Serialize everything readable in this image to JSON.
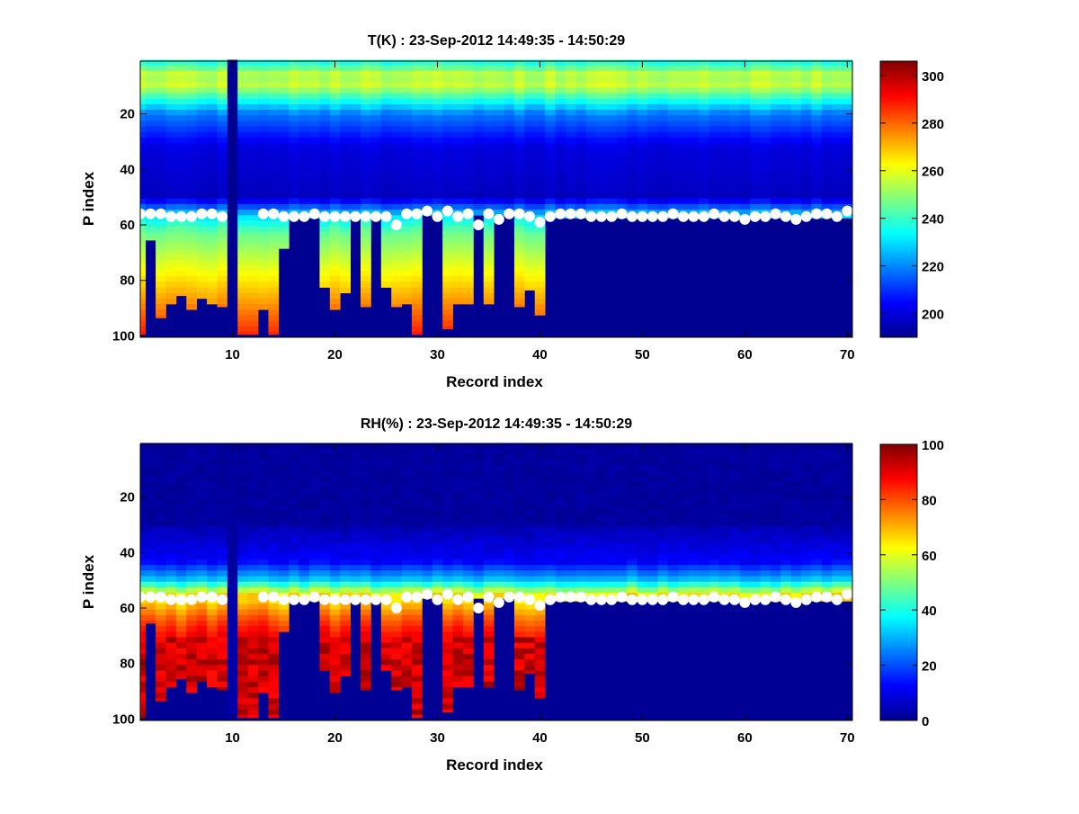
{
  "chart_data": [
    {
      "type": "heatmap",
      "title": "T(K) : 23-Sep-2012 14:49:35 - 14:50:29",
      "xlabel": "Record index",
      "ylabel": "P index",
      "xlim": [
        1,
        70.5
      ],
      "ylim": [
        1,
        100.5
      ],
      "xticks": [
        "10",
        "20",
        "30",
        "40",
        "50",
        "60",
        "70"
      ],
      "xtick_values": [
        10,
        20,
        30,
        40,
        50,
        60,
        70
      ],
      "yticks": [
        "20",
        "40",
        "60",
        "80",
        "100"
      ],
      "ytick_values": [
        20,
        40,
        60,
        80,
        100
      ],
      "colorbar": {
        "range": [
          190,
          306
        ],
        "ticks": [
          "200",
          "220",
          "240",
          "260",
          "280",
          "300"
        ],
        "tick_values": [
          200,
          220,
          240,
          260,
          280,
          300
        ]
      },
      "fill_value": 192,
      "profile_ends": [
        99,
        65,
        93,
        88,
        85,
        90,
        86,
        88,
        89,
        100,
        99,
        99,
        90,
        99,
        68,
        57,
        56,
        57,
        82,
        90,
        84,
        56,
        89,
        57,
        82,
        89,
        88,
        99,
        56,
        56,
        97,
        88,
        88,
        56,
        88,
        56,
        56,
        89,
        83,
        92
      ],
      "surface_p_index": [
        56,
        56,
        56,
        57,
        57,
        57,
        56,
        56,
        57,
        null,
        null,
        null,
        56,
        56,
        57,
        57,
        57,
        56,
        57,
        57,
        57,
        57,
        57,
        57,
        57,
        60,
        56,
        56,
        55,
        57,
        55,
        57,
        56,
        60,
        56,
        58,
        56,
        56,
        57,
        59,
        57,
        56,
        56,
        56,
        57,
        57,
        57,
        56,
        57,
        57,
        57,
        57,
        56,
        57,
        57,
        57,
        56,
        57,
        57,
        58,
        57,
        57,
        56,
        57,
        58,
        57,
        56,
        56,
        57,
        55
      ]
    },
    {
      "type": "heatmap",
      "title": "RH(%) : 23-Sep-2012 14:49:35 - 14:50:29",
      "xlabel": "Record index",
      "ylabel": "P index",
      "xlim": [
        1,
        70.5
      ],
      "ylim": [
        1,
        100.5
      ],
      "xticks": [
        "10",
        "20",
        "30",
        "40",
        "50",
        "60",
        "70"
      ],
      "xtick_values": [
        10,
        20,
        30,
        40,
        50,
        60,
        70
      ],
      "yticks": [
        "20",
        "40",
        "60",
        "80",
        "100"
      ],
      "ytick_values": [
        20,
        40,
        60,
        80,
        100
      ],
      "colorbar": {
        "range": [
          0,
          100
        ],
        "ticks": [
          "0",
          "20",
          "40",
          "60",
          "80",
          "100"
        ],
        "tick_values": [
          0,
          20,
          40,
          60,
          80,
          100
        ]
      },
      "fill_value": 2,
      "profile_ends": [
        99,
        65,
        93,
        88,
        85,
        90,
        86,
        88,
        89,
        100,
        99,
        99,
        90,
        99,
        68,
        57,
        56,
        57,
        82,
        90,
        84,
        56,
        89,
        57,
        82,
        89,
        88,
        99,
        56,
        56,
        97,
        88,
        88,
        56,
        88,
        56,
        56,
        89,
        83,
        92
      ],
      "surface_p_index": [
        56,
        56,
        56,
        57,
        57,
        57,
        56,
        56,
        57,
        null,
        null,
        null,
        56,
        56,
        57,
        57,
        57,
        56,
        57,
        57,
        57,
        57,
        57,
        57,
        57,
        60,
        56,
        56,
        55,
        57,
        55,
        57,
        56,
        60,
        56,
        58,
        56,
        56,
        57,
        59,
        57,
        56,
        56,
        56,
        57,
        57,
        57,
        56,
        57,
        57,
        57,
        57,
        56,
        57,
        57,
        57,
        56,
        57,
        57,
        58,
        57,
        57,
        56,
        57,
        58,
        57,
        56,
        56,
        57,
        55
      ]
    }
  ]
}
